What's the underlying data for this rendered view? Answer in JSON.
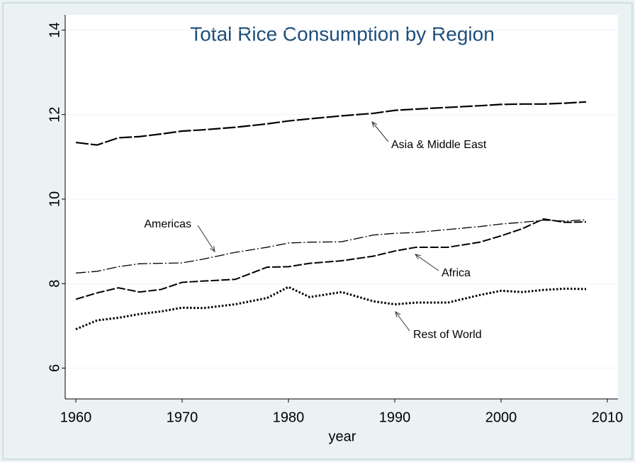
{
  "chart_data": {
    "type": "line",
    "title": "Total Rice Consumption by Region",
    "x_label": "year",
    "x": [
      1960,
      1962,
      1964,
      1966,
      1968,
      1970,
      1972,
      1975,
      1978,
      1980,
      1982,
      1985,
      1988,
      1990,
      1992,
      1995,
      1998,
      2000,
      2002,
      2004,
      2006,
      2008
    ],
    "series": [
      {
        "name": "Asia & Middle East",
        "color": "#000000",
        "dash": "longdash",
        "values": [
          11.34,
          11.28,
          11.45,
          11.48,
          11.54,
          11.61,
          11.64,
          11.7,
          11.78,
          11.85,
          11.9,
          11.97,
          12.03,
          12.1,
          12.13,
          12.17,
          12.21,
          12.24,
          12.25,
          12.25,
          12.27,
          12.3
        ]
      },
      {
        "name": "Americas",
        "color": "#000000",
        "dash": "dashdot",
        "values": [
          8.25,
          8.29,
          8.4,
          8.47,
          8.48,
          8.49,
          8.58,
          8.74,
          8.86,
          8.96,
          8.98,
          8.99,
          9.15,
          9.19,
          9.21,
          9.28,
          9.35,
          9.41,
          9.45,
          9.5,
          9.48,
          9.51
        ]
      },
      {
        "name": "Africa",
        "color": "#000000",
        "dash": "dash",
        "values": [
          7.63,
          7.78,
          7.9,
          7.8,
          7.86,
          8.03,
          8.06,
          8.1,
          8.39,
          8.4,
          8.48,
          8.54,
          8.65,
          8.77,
          8.86,
          8.86,
          8.98,
          9.13,
          9.3,
          9.53,
          9.45,
          9.46
        ]
      },
      {
        "name": "Rest of World",
        "color": "#000000",
        "dash": "dot",
        "values": [
          6.92,
          7.13,
          7.19,
          7.28,
          7.34,
          7.43,
          7.42,
          7.51,
          7.66,
          7.92,
          7.68,
          7.8,
          7.58,
          7.51,
          7.55,
          7.55,
          7.73,
          7.83,
          7.8,
          7.85,
          7.88,
          7.87
        ]
      }
    ],
    "xlim": [
      1959,
      2011
    ],
    "xticks": [
      1960,
      1970,
      1980,
      1990,
      2000,
      2010
    ],
    "ylim": [
      5.27,
      14.36
    ],
    "yticks": [
      6,
      8,
      10,
      12,
      14
    ],
    "grid": true
  }
}
